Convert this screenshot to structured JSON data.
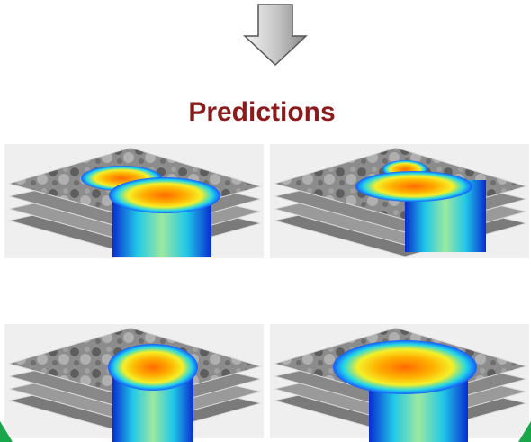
{
  "title": "Predictions"
}
